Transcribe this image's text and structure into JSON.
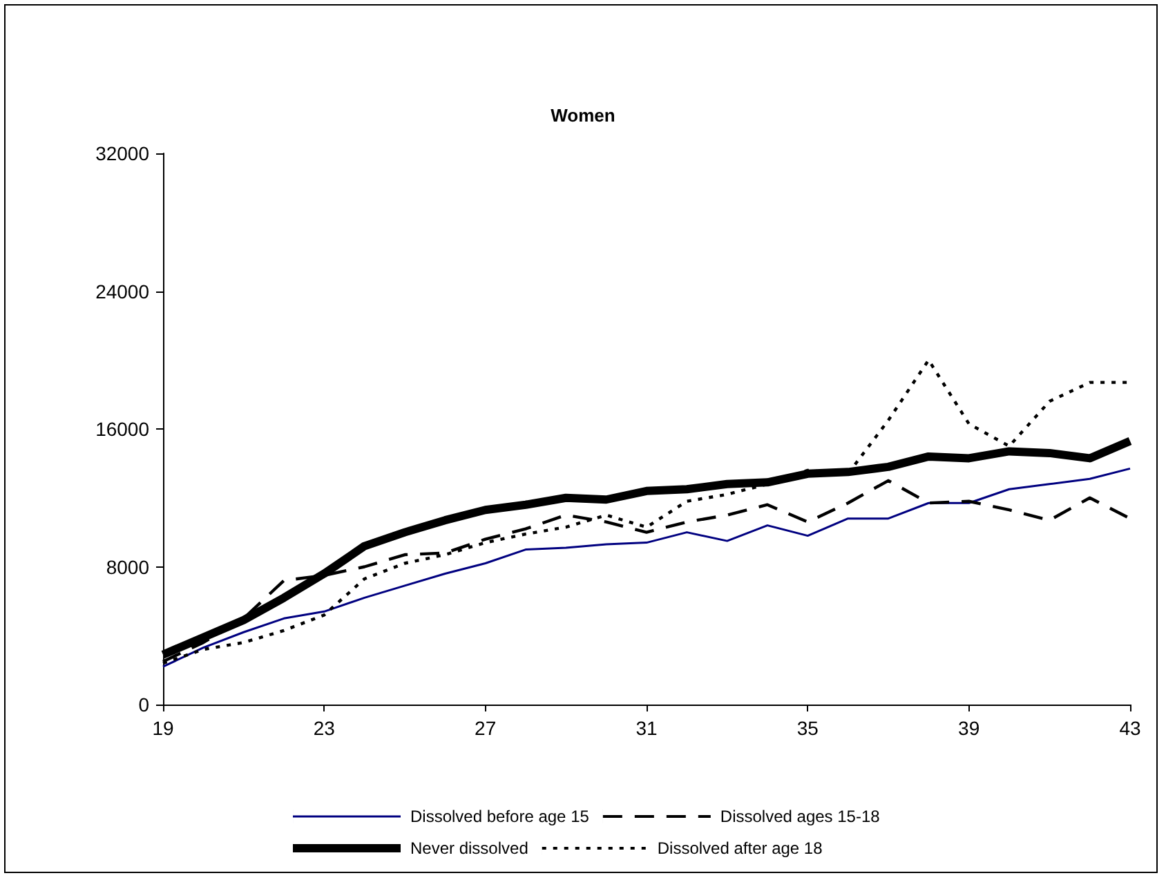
{
  "chart_data": {
    "type": "line",
    "title": "Women",
    "x": [
      19,
      20,
      21,
      22,
      23,
      24,
      25,
      26,
      27,
      28,
      29,
      30,
      31,
      32,
      33,
      34,
      35,
      36,
      37,
      38,
      39,
      40,
      41,
      42,
      43
    ],
    "xlim": [
      19,
      43
    ],
    "xticks": [
      19,
      23,
      27,
      31,
      35,
      39,
      43
    ],
    "ylim": [
      0,
      32000
    ],
    "yticks": [
      0,
      8000,
      16000,
      24000,
      32000
    ],
    "grid": false,
    "legend": "bottom",
    "marker": "none",
    "series": [
      {
        "name": "Dissolved before age 15",
        "color": "#000080",
        "line_style": "solid",
        "values": [
          2200,
          3300,
          4200,
          5000,
          5400,
          6200,
          6900,
          7600,
          8200,
          9000,
          9100,
          9300,
          9400,
          10000,
          9500,
          10400,
          9800,
          10800,
          10800,
          11700,
          11700,
          12500,
          12800,
          13100,
          13700
        ]
      },
      {
        "name": "Dissolved ages 15-18",
        "color": "#000000",
        "line_style": "dashed",
        "values": [
          2500,
          3600,
          5000,
          7200,
          7500,
          8000,
          8700,
          8800,
          9600,
          10200,
          11000,
          10600,
          10000,
          10600,
          11000,
          11600,
          10600,
          11700,
          13000,
          11700,
          11800,
          11300,
          10700,
          12000,
          10800
        ]
      },
      {
        "name": "Never dissolved",
        "color": "#000000",
        "line_style": "solid",
        "values": [
          2900,
          3900,
          4900,
          6200,
          7600,
          9200,
          10000,
          10700,
          11300,
          11600,
          12000,
          11900,
          12400,
          12500,
          12800,
          12900,
          13400,
          13500,
          13800,
          14400,
          14300,
          14700,
          14600,
          14300,
          15300
        ]
      },
      {
        "name": "Dissolved after age 18",
        "color": "#000000",
        "line_style": "dotted",
        "values": [
          2400,
          3200,
          3600,
          4300,
          5200,
          7300,
          8200,
          8700,
          9400,
          9900,
          10300,
          11000,
          10300,
          11800,
          12200,
          12800,
          13600,
          13400,
          16500,
          20000,
          16300,
          15000,
          17600,
          18700,
          18700
        ]
      }
    ]
  }
}
